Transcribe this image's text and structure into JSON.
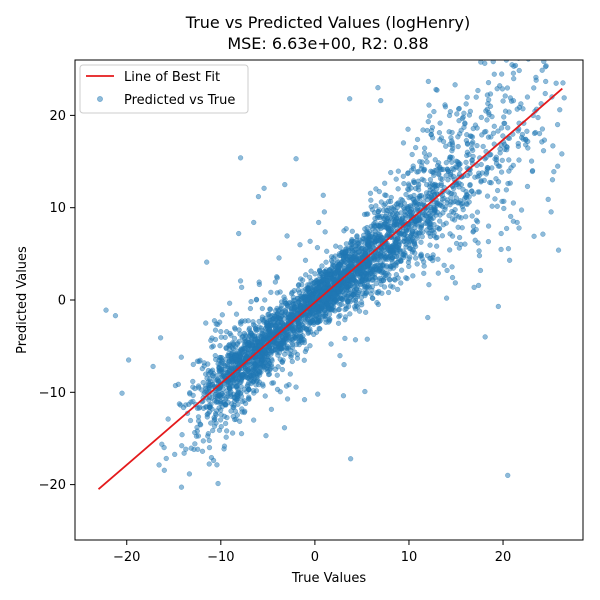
{
  "chart_data": {
    "type": "scatter",
    "title": "True vs Predicted Values (logHenry)",
    "subtitle": "MSE: 6.63e+00, R2: 0.88",
    "xlabel": "True Values",
    "ylabel": "Predicted Values",
    "xlim": [
      -25.5,
      28.5
    ],
    "ylim": [
      -26,
      26
    ],
    "xticks": [
      -20,
      -10,
      0,
      10,
      20
    ],
    "yticks": [
      -20,
      -10,
      0,
      10,
      20
    ],
    "grid": false,
    "legend": {
      "placement": "top-left",
      "entries": [
        {
          "label": "Line of Best Fit",
          "kind": "line",
          "color": "#e41a1c"
        },
        {
          "label": "Predicted vs True",
          "kind": "marker",
          "color": "#1f77b4"
        }
      ]
    },
    "best_fit_line": {
      "name": "Line of Best Fit",
      "color": "#e41a1c",
      "x": [
        -23,
        26.3
      ],
      "y": [
        -20.5,
        22.9
      ]
    },
    "scatter_series": {
      "name": "Predicted vs True",
      "color": "#1f77b4",
      "point_count": 3500,
      "seed": 7,
      "main_trend": {
        "slope": 0.88,
        "intercept": -0.3
      },
      "outliers": [
        [
          -22.2,
          -1.1
        ],
        [
          -21.2,
          -1.7
        ],
        [
          -20.5,
          -10.1
        ],
        [
          -19.8,
          -6.5
        ],
        [
          -17.2,
          -7.2
        ],
        [
          -16.4,
          -4.1
        ],
        [
          -15.6,
          -12.9
        ],
        [
          -13.9,
          -16.6
        ],
        [
          -11.6,
          -2.5
        ],
        [
          -10.8,
          -5.0
        ],
        [
          -8.1,
          7.2
        ],
        [
          -7.9,
          15.4
        ],
        [
          -6.0,
          11.2
        ],
        [
          -5.4,
          12.1
        ],
        [
          -4.0,
          2.4
        ],
        [
          -2.0,
          15.3
        ],
        [
          -1.0,
          4.3
        ],
        [
          0.4,
          8.4
        ],
        [
          3.1,
          -7.0
        ],
        [
          3.7,
          21.8
        ],
        [
          3.8,
          -17.2
        ],
        [
          6.7,
          23.0
        ],
        [
          7.0,
          21.6
        ],
        [
          0.3,
          -10.2
        ],
        [
          17.6,
          3.2
        ],
        [
          18.1,
          -4.0
        ],
        [
          19.5,
          -0.7
        ],
        [
          20.5,
          -19.0
        ],
        [
          21.5,
          8.4
        ],
        [
          22.6,
          12.3
        ],
        [
          23.3,
          6.9
        ],
        [
          24.8,
          10.9
        ],
        [
          25.4,
          13.9
        ],
        [
          25.9,
          5.4
        ],
        [
          25.2,
          22.0
        ],
        [
          20.7,
          4.3
        ],
        [
          19.8,
          7.2
        ],
        [
          26.5,
          21.9
        ],
        [
          25.8,
          19.0
        ],
        [
          12.0,
          -1.9
        ],
        [
          14.0,
          0.2
        ],
        [
          16.5,
          12.5
        ],
        [
          -1.1,
          -10.8
        ],
        [
          -5.2,
          -14.7
        ],
        [
          -12.5,
          -14.2
        ],
        [
          -11.5,
          4.1
        ],
        [
          -6.5,
          8.4
        ],
        [
          -3.2,
          12.5
        ],
        [
          9.9,
          18.5
        ],
        [
          14.4,
          20.4
        ]
      ]
    }
  }
}
